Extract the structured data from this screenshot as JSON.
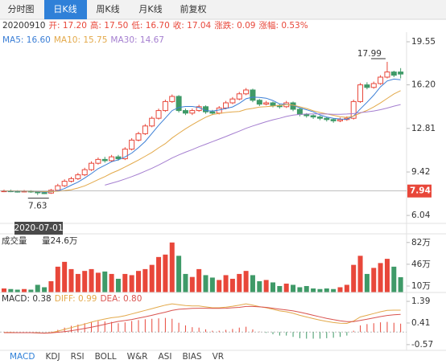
{
  "tabs": [
    "分时图",
    "日K线",
    "周K线",
    "月K线",
    "前复权"
  ],
  "indicator_tabs": [
    "MACD",
    "KDJ",
    "RSI",
    "BOLL",
    "W&R",
    "ASI",
    "BIAS",
    "VR"
  ],
  "chart_data": {
    "type": "candlestick",
    "info": [
      "20200910",
      "开: 17.20",
      "高: 17.50",
      "低: 16.70",
      "收: 17.04",
      "涨跌: 0.09",
      "涨幅: 0.53%"
    ],
    "up_color": "#e8473a",
    "down_color": "#3f9a68",
    "open": [
      7.9,
      7.95,
      7.92,
      7.9,
      7.93,
      7.88,
      7.8,
      7.78,
      8.0,
      8.35,
      8.7,
      8.9,
      9.2,
      9.6,
      10.1,
      10.4,
      10.3,
      10.6,
      10.45,
      11.2,
      11.9,
      12.4,
      13.0,
      13.6,
      14.2,
      14.9,
      15.3,
      14.2,
      14.0,
      14.2,
      14.5,
      14.1,
      14.0,
      14.4,
      14.8,
      15.1,
      15.5,
      15.8,
      15.0,
      14.7,
      14.8,
      14.6,
      14.5,
      14.8,
      14.3,
      13.9,
      13.8,
      13.7,
      13.6,
      13.5,
      13.4,
      13.5,
      13.6,
      14.9,
      16.2,
      16.0,
      16.3,
      16.8,
      17.2,
      17.2
    ],
    "high": [
      8.05,
      8.05,
      8.0,
      8.02,
      8.0,
      7.92,
      7.9,
      8.1,
      8.5,
      8.85,
      9.05,
      9.35,
      9.75,
      10.25,
      10.55,
      10.6,
      10.75,
      10.75,
      11.35,
      12.05,
      12.55,
      13.15,
      13.75,
      14.35,
      15.05,
      15.45,
      15.4,
      14.35,
      14.35,
      14.65,
      14.6,
      14.25,
      14.55,
      14.95,
      15.25,
      15.65,
      15.95,
      15.9,
      15.1,
      14.95,
      14.9,
      14.7,
      14.95,
      14.9,
      14.4,
      14.0,
      13.9,
      13.8,
      13.7,
      13.6,
      13.65,
      13.75,
      15.05,
      16.35,
      16.4,
      16.45,
      16.95,
      17.99,
      17.3,
      17.5
    ],
    "low": [
      7.85,
      7.85,
      7.82,
      7.84,
      7.8,
      7.63,
      7.7,
      7.72,
      7.95,
      8.25,
      8.6,
      8.8,
      9.1,
      9.5,
      10.0,
      10.15,
      10.2,
      10.3,
      10.35,
      11.1,
      11.8,
      12.3,
      12.9,
      13.5,
      14.1,
      14.8,
      14.05,
      13.85,
      13.85,
      14.1,
      13.95,
      13.85,
      13.9,
      14.3,
      14.7,
      15.0,
      15.4,
      14.85,
      14.55,
      14.6,
      14.45,
      14.35,
      14.4,
      14.15,
      13.75,
      13.65,
      13.55,
      13.45,
      13.35,
      13.25,
      13.3,
      13.4,
      13.5,
      14.8,
      15.85,
      15.9,
      16.2,
      16.7,
      16.8,
      16.7
    ],
    "close": [
      7.95,
      7.92,
      7.9,
      7.93,
      7.88,
      7.8,
      7.78,
      8.0,
      8.35,
      8.7,
      8.9,
      9.2,
      9.6,
      10.1,
      10.4,
      10.3,
      10.6,
      10.45,
      11.2,
      11.9,
      12.4,
      13.0,
      13.6,
      14.2,
      14.9,
      15.3,
      14.2,
      14.0,
      14.2,
      14.5,
      14.1,
      14.0,
      14.4,
      14.8,
      15.1,
      15.5,
      15.8,
      15.0,
      14.7,
      14.8,
      14.6,
      14.5,
      14.8,
      14.3,
      13.9,
      13.8,
      13.7,
      13.6,
      13.5,
      13.4,
      13.5,
      13.6,
      14.9,
      16.2,
      16.0,
      16.3,
      16.8,
      17.2,
      16.95,
      17.04
    ],
    "series": [
      {
        "name": "MA5: 16.60",
        "color": "#3c7fd6",
        "values": [
          7.95,
          7.94,
          7.93,
          7.92,
          7.92,
          7.89,
          7.86,
          7.88,
          7.96,
          8.13,
          8.39,
          8.63,
          8.95,
          9.3,
          9.68,
          9.94,
          10.22,
          10.37,
          10.59,
          10.89,
          11.31,
          11.79,
          12.42,
          13.04,
          13.62,
          14.2,
          14.44,
          14.52,
          14.52,
          14.44,
          14.2,
          14.16,
          14.24,
          14.36,
          14.48,
          14.76,
          15.12,
          15.24,
          15.22,
          15.16,
          14.98,
          14.72,
          14.68,
          14.6,
          14.42,
          14.26,
          14.1,
          13.86,
          13.7,
          13.6,
          13.54,
          13.52,
          13.78,
          14.32,
          14.84,
          15.4,
          16.04,
          16.5,
          16.65,
          16.6
        ]
      },
      {
        "name": "MA10: 15.75",
        "color": "#e3a94a",
        "values": [
          7.96,
          7.95,
          7.95,
          7.94,
          7.93,
          7.92,
          7.9,
          7.9,
          7.92,
          7.97,
          8.04,
          8.17,
          8.34,
          8.57,
          8.82,
          9.06,
          9.33,
          9.55,
          9.81,
          10.08,
          10.35,
          10.64,
          10.94,
          11.3,
          11.63,
          12.07,
          12.43,
          12.78,
          13.1,
          13.4,
          13.68,
          13.89,
          13.97,
          14.05,
          14.09,
          14.13,
          14.29,
          14.37,
          14.47,
          14.5,
          14.55,
          14.6,
          14.67,
          14.62,
          14.5,
          14.36,
          14.18,
          14.05,
          13.94,
          13.83,
          13.72,
          13.67,
          13.77,
          14.0,
          14.21,
          14.48,
          14.79,
          15.14,
          15.49,
          15.75
        ]
      },
      {
        "name": "MA30: 14.67",
        "color": "#a57fd0",
        "values": [
          null,
          null,
          null,
          null,
          null,
          null,
          null,
          null,
          null,
          null,
          null,
          null,
          null,
          null,
          null,
          8.4,
          8.55,
          8.7,
          8.87,
          9.06,
          9.26,
          9.48,
          9.71,
          9.96,
          10.23,
          10.51,
          10.75,
          10.96,
          11.16,
          11.38,
          11.58,
          11.78,
          11.98,
          12.18,
          12.39,
          12.6,
          12.82,
          13.0,
          13.17,
          13.33,
          13.48,
          13.6,
          13.74,
          13.84,
          13.9,
          13.93,
          13.94,
          13.94,
          13.93,
          13.91,
          13.91,
          13.93,
          13.96,
          14.04,
          14.09,
          14.17,
          14.27,
          14.39,
          14.54,
          14.67
        ]
      }
    ],
    "ylim": [
      5.61,
      20.3
    ],
    "yticks": [
      19.55,
      {
        "value": 16.2,
        "label": "16.20"
      },
      12.81,
      9.42,
      6.04
    ],
    "annotations": {
      "high": 17.99,
      "low": 7.63
    },
    "crosshair": {
      "price": 7.94,
      "date": "2020-07-01"
    },
    "volume": {
      "title": "成交量",
      "label": "量24.6万",
      "values": [
        6,
        5,
        4,
        5,
        4,
        12,
        8,
        18,
        42,
        50,
        38,
        30,
        35,
        38,
        32,
        34,
        30,
        22,
        30,
        28,
        35,
        38,
        45,
        58,
        62,
        82,
        60,
        30,
        25,
        38,
        28,
        24,
        20,
        28,
        22,
        30,
        35,
        28,
        18,
        20,
        16,
        10,
        14,
        12,
        8,
        10,
        6,
        5,
        6,
        5,
        8,
        12,
        45,
        60,
        30,
        40,
        48,
        55,
        42,
        24.6
      ],
      "ylim": [
        0,
        95
      ],
      "yticks": [
        {
          "value": 82,
          "label": "82万"
        },
        {
          "value": 46,
          "label": "46万"
        },
        {
          "value": 10,
          "label": "10万"
        }
      ]
    },
    "macd": {
      "histogram": {
        "name": "MACD: 0.38",
        "values": [
          0.01,
          0.01,
          0,
          0,
          0,
          -0.01,
          -0.01,
          0.02,
          0.1,
          0.2,
          0.28,
          0.34,
          0.4,
          0.46,
          0.5,
          0.48,
          0.46,
          0.4,
          0.44,
          0.5,
          0.54,
          0.58,
          0.6,
          0.62,
          0.64,
          0.6,
          0.42,
          0.3,
          0.22,
          0.2,
          0.12,
          0.06,
          0.06,
          0.1,
          0.14,
          0.2,
          0.24,
          0.12,
          0.02,
          -0.04,
          -0.1,
          -0.16,
          -0.16,
          -0.22,
          -0.28,
          -0.3,
          -0.3,
          -0.3,
          -0.28,
          -0.26,
          -0.22,
          -0.16,
          0.06,
          0.3,
          0.36,
          0.4,
          0.44,
          0.46,
          0.42,
          0.38
        ]
      },
      "series": [
        {
          "name": "DIFF: 0.99",
          "color": "#e3a94a",
          "values": [
            -0.02,
            -0.02,
            -0.03,
            -0.03,
            -0.03,
            -0.04,
            -0.05,
            -0.03,
            0.04,
            0.12,
            0.2,
            0.28,
            0.36,
            0.45,
            0.53,
            0.59,
            0.65,
            0.68,
            0.74,
            0.82,
            0.9,
            0.98,
            1.06,
            1.14,
            1.22,
            1.28,
            1.24,
            1.2,
            1.18,
            1.18,
            1.14,
            1.1,
            1.1,
            1.13,
            1.17,
            1.22,
            1.28,
            1.22,
            1.15,
            1.1,
            1.03,
            0.96,
            0.92,
            0.85,
            0.76,
            0.68,
            0.61,
            0.54,
            0.48,
            0.43,
            0.4,
            0.39,
            0.5,
            0.68,
            0.76,
            0.84,
            0.92,
            0.98,
            0.99,
            0.99
          ]
        },
        {
          "name": "DEA: 0.80",
          "color": "#d9534f",
          "values": [
            -0.03,
            -0.03,
            -0.03,
            -0.03,
            -0.03,
            -0.04,
            -0.05,
            -0.04,
            -0.01,
            0.02,
            0.06,
            0.11,
            0.16,
            0.22,
            0.28,
            0.35,
            0.42,
            0.48,
            0.52,
            0.57,
            0.63,
            0.69,
            0.76,
            0.83,
            0.9,
            0.98,
            1.03,
            1.05,
            1.07,
            1.08,
            1.08,
            1.07,
            1.07,
            1.08,
            1.1,
            1.12,
            1.16,
            1.16,
            1.14,
            1.12,
            1.08,
            1.04,
            1.0,
            0.96,
            0.9,
            0.83,
            0.76,
            0.69,
            0.62,
            0.56,
            0.51,
            0.47,
            0.47,
            0.53,
            0.58,
            0.64,
            0.7,
            0.75,
            0.78,
            0.8
          ]
        }
      ],
      "ylim": [
        -0.83,
        1.72
      ],
      "yticks": [
        1.39,
        0.41,
        -0.57
      ]
    }
  }
}
